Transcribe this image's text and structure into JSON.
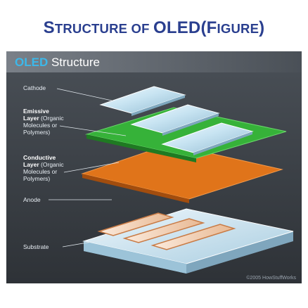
{
  "title": {
    "part1_big": "S",
    "part1_small": "TRUCTURE OF ",
    "part2_big": "OLED(F",
    "part2_small": "IGURE",
    "part3_big": ")"
  },
  "figure": {
    "header_oled": "OLED",
    "header_rest": " Structure",
    "labels": {
      "cathode": "Cathode",
      "emissive_1": "Emissive",
      "emissive_2": "Layer",
      "emissive_2b": " (Organic",
      "emissive_3": "Molecules or",
      "emissive_4": "Polymers)",
      "conductive_1": "Conductive",
      "conductive_2": "Layer",
      "conductive_2b": " (Organic",
      "conductive_3": "Molecules or",
      "conductive_4": "Polymers)",
      "anode": "Anode",
      "substrate": "Substrate"
    },
    "copyright": "©2005 HowStuffWorks",
    "colors": {
      "background": "#3a3f45",
      "header_bar": "#6a7078",
      "oled_accent": "#3cb8ea",
      "emissive": "#36b239",
      "conductive": "#e0741a",
      "title": "#2a3f8f"
    }
  }
}
